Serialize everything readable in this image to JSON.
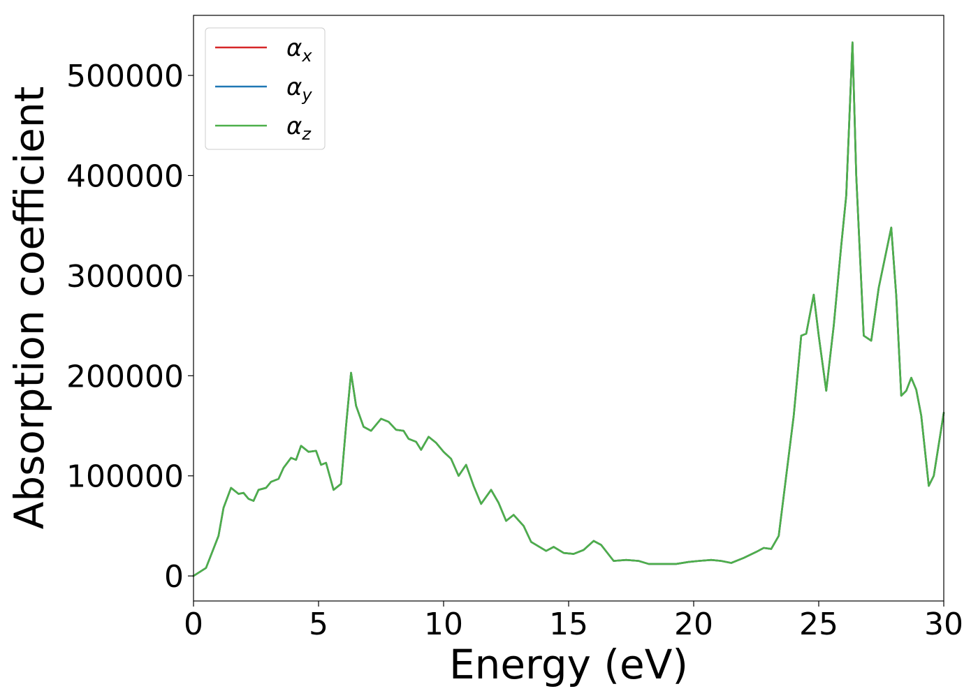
{
  "chart_data": {
    "type": "line",
    "xlabel": "Energy (eV)",
    "ylabel": "Absorption coefficient",
    "xlim": [
      0,
      30
    ],
    "ylim": [
      -25000,
      560000
    ],
    "x_ticks": [
      "0",
      "5",
      "10",
      "15",
      "20",
      "25",
      "30"
    ],
    "y_ticks": [
      "0",
      "100000",
      "200000",
      "300000",
      "400000",
      "500000"
    ],
    "grid": false,
    "legend_position": "top-left",
    "series": [
      {
        "name": "α",
        "subscript": "x",
        "color": "#d62728",
        "points": [
          [
            0,
            0
          ],
          [
            0.5,
            8000
          ],
          [
            1.0,
            40000
          ],
          [
            1.2,
            68000
          ],
          [
            1.5,
            88000
          ],
          [
            1.8,
            82000
          ],
          [
            2.0,
            83000
          ],
          [
            2.2,
            77000
          ],
          [
            2.4,
            75000
          ],
          [
            2.6,
            86000
          ],
          [
            2.9,
            88000
          ],
          [
            3.1,
            94000
          ],
          [
            3.4,
            97000
          ],
          [
            3.6,
            108000
          ],
          [
            3.9,
            118000
          ],
          [
            4.1,
            116000
          ],
          [
            4.3,
            130000
          ],
          [
            4.6,
            124000
          ],
          [
            4.9,
            125000
          ],
          [
            5.1,
            111000
          ],
          [
            5.3,
            113000
          ],
          [
            5.6,
            86000
          ],
          [
            5.9,
            92000
          ],
          [
            6.1,
            150000
          ],
          [
            6.3,
            203000
          ],
          [
            6.5,
            170000
          ],
          [
            6.8,
            149000
          ],
          [
            7.1,
            145000
          ],
          [
            7.5,
            157000
          ],
          [
            7.8,
            154000
          ],
          [
            8.1,
            146000
          ],
          [
            8.4,
            145000
          ],
          [
            8.6,
            137000
          ],
          [
            8.9,
            134000
          ],
          [
            9.1,
            126000
          ],
          [
            9.4,
            139000
          ],
          [
            9.7,
            133000
          ],
          [
            10.0,
            124000
          ],
          [
            10.3,
            117000
          ],
          [
            10.6,
            100000
          ],
          [
            10.9,
            111000
          ],
          [
            11.2,
            90000
          ],
          [
            11.5,
            72000
          ],
          [
            11.9,
            86000
          ],
          [
            12.2,
            73000
          ],
          [
            12.5,
            55000
          ],
          [
            12.8,
            61000
          ],
          [
            13.2,
            50000
          ],
          [
            13.5,
            34000
          ],
          [
            14.1,
            25000
          ],
          [
            14.4,
            29000
          ],
          [
            14.8,
            23000
          ],
          [
            15.2,
            22000
          ],
          [
            15.6,
            26000
          ],
          [
            16.0,
            35000
          ],
          [
            16.3,
            31000
          ],
          [
            16.8,
            15000
          ],
          [
            17.3,
            16000
          ],
          [
            17.8,
            15000
          ],
          [
            18.2,
            12000
          ],
          [
            18.8,
            12000
          ],
          [
            19.3,
            12000
          ],
          [
            19.8,
            14000
          ],
          [
            20.2,
            15000
          ],
          [
            20.7,
            16000
          ],
          [
            21.1,
            15000
          ],
          [
            21.5,
            13000
          ],
          [
            22.0,
            18000
          ],
          [
            22.5,
            24000
          ],
          [
            22.8,
            28000
          ],
          [
            23.1,
            27000
          ],
          [
            23.4,
            40000
          ],
          [
            23.7,
            100000
          ],
          [
            24.0,
            160000
          ],
          [
            24.3,
            240000
          ],
          [
            24.5,
            242000
          ],
          [
            24.8,
            281000
          ],
          [
            25.0,
            240000
          ],
          [
            25.3,
            185000
          ],
          [
            25.6,
            250000
          ],
          [
            25.9,
            330000
          ],
          [
            26.1,
            380000
          ],
          [
            26.35,
            533000
          ],
          [
            26.5,
            400000
          ],
          [
            26.8,
            240000
          ],
          [
            27.1,
            235000
          ],
          [
            27.4,
            288000
          ],
          [
            27.9,
            348000
          ],
          [
            28.1,
            280000
          ],
          [
            28.3,
            180000
          ],
          [
            28.5,
            185000
          ],
          [
            28.7,
            198000
          ],
          [
            28.9,
            186000
          ],
          [
            29.1,
            160000
          ],
          [
            29.4,
            90000
          ],
          [
            29.6,
            100000
          ],
          [
            30.0,
            163000
          ]
        ]
      },
      {
        "name": "α",
        "subscript": "y",
        "color": "#1f77b4",
        "points": [
          [
            0,
            0
          ],
          [
            0.5,
            8000
          ],
          [
            1.0,
            40000
          ],
          [
            1.2,
            68000
          ],
          [
            1.5,
            88000
          ],
          [
            1.8,
            82000
          ],
          [
            2.0,
            83000
          ],
          [
            2.2,
            77000
          ],
          [
            2.4,
            75000
          ],
          [
            2.6,
            86000
          ],
          [
            2.9,
            88000
          ],
          [
            3.1,
            94000
          ],
          [
            3.4,
            97000
          ],
          [
            3.6,
            108000
          ],
          [
            3.9,
            118000
          ],
          [
            4.1,
            116000
          ],
          [
            4.3,
            130000
          ],
          [
            4.6,
            124000
          ],
          [
            4.9,
            125000
          ],
          [
            5.1,
            111000
          ],
          [
            5.3,
            113000
          ],
          [
            5.6,
            86000
          ],
          [
            5.9,
            92000
          ],
          [
            6.1,
            150000
          ],
          [
            6.3,
            203000
          ],
          [
            6.5,
            170000
          ],
          [
            6.8,
            149000
          ],
          [
            7.1,
            145000
          ],
          [
            7.5,
            157000
          ],
          [
            7.8,
            154000
          ],
          [
            8.1,
            146000
          ],
          [
            8.4,
            145000
          ],
          [
            8.6,
            137000
          ],
          [
            8.9,
            134000
          ],
          [
            9.1,
            126000
          ],
          [
            9.4,
            139000
          ],
          [
            9.7,
            133000
          ],
          [
            10.0,
            124000
          ],
          [
            10.3,
            117000
          ],
          [
            10.6,
            100000
          ],
          [
            10.9,
            111000
          ],
          [
            11.2,
            90000
          ],
          [
            11.5,
            72000
          ],
          [
            11.9,
            86000
          ],
          [
            12.2,
            73000
          ],
          [
            12.5,
            55000
          ],
          [
            12.8,
            61000
          ],
          [
            13.2,
            50000
          ],
          [
            13.5,
            34000
          ],
          [
            14.1,
            25000
          ],
          [
            14.4,
            29000
          ],
          [
            14.8,
            23000
          ],
          [
            15.2,
            22000
          ],
          [
            15.6,
            26000
          ],
          [
            16.0,
            35000
          ],
          [
            16.3,
            31000
          ],
          [
            16.8,
            15000
          ],
          [
            17.3,
            16000
          ],
          [
            17.8,
            15000
          ],
          [
            18.2,
            12000
          ],
          [
            18.8,
            12000
          ],
          [
            19.3,
            12000
          ],
          [
            19.8,
            14000
          ],
          [
            20.2,
            15000
          ],
          [
            20.7,
            16000
          ],
          [
            21.1,
            15000
          ],
          [
            21.5,
            13000
          ],
          [
            22.0,
            18000
          ],
          [
            22.5,
            24000
          ],
          [
            22.8,
            28000
          ],
          [
            23.1,
            27000
          ],
          [
            23.4,
            40000
          ],
          [
            23.7,
            100000
          ],
          [
            24.0,
            160000
          ],
          [
            24.3,
            240000
          ],
          [
            24.5,
            242000
          ],
          [
            24.8,
            281000
          ],
          [
            25.0,
            240000
          ],
          [
            25.3,
            185000
          ],
          [
            25.6,
            250000
          ],
          [
            25.9,
            330000
          ],
          [
            26.1,
            380000
          ],
          [
            26.35,
            533000
          ],
          [
            26.5,
            400000
          ],
          [
            26.8,
            240000
          ],
          [
            27.1,
            235000
          ],
          [
            27.4,
            288000
          ],
          [
            27.9,
            348000
          ],
          [
            28.1,
            280000
          ],
          [
            28.3,
            180000
          ],
          [
            28.5,
            185000
          ],
          [
            28.7,
            198000
          ],
          [
            28.9,
            186000
          ],
          [
            29.1,
            160000
          ],
          [
            29.4,
            90000
          ],
          [
            29.6,
            100000
          ],
          [
            30.0,
            163000
          ]
        ]
      },
      {
        "name": "α",
        "subscript": "z",
        "color": "#4daf4a",
        "points": [
          [
            0,
            0
          ],
          [
            0.5,
            8000
          ],
          [
            1.0,
            40000
          ],
          [
            1.2,
            68000
          ],
          [
            1.5,
            88000
          ],
          [
            1.8,
            82000
          ],
          [
            2.0,
            83000
          ],
          [
            2.2,
            77000
          ],
          [
            2.4,
            75000
          ],
          [
            2.6,
            86000
          ],
          [
            2.9,
            88000
          ],
          [
            3.1,
            94000
          ],
          [
            3.4,
            97000
          ],
          [
            3.6,
            108000
          ],
          [
            3.9,
            118000
          ],
          [
            4.1,
            116000
          ],
          [
            4.3,
            130000
          ],
          [
            4.6,
            124000
          ],
          [
            4.9,
            125000
          ],
          [
            5.1,
            111000
          ],
          [
            5.3,
            113000
          ],
          [
            5.6,
            86000
          ],
          [
            5.9,
            92000
          ],
          [
            6.1,
            150000
          ],
          [
            6.3,
            203000
          ],
          [
            6.5,
            170000
          ],
          [
            6.8,
            149000
          ],
          [
            7.1,
            145000
          ],
          [
            7.5,
            157000
          ],
          [
            7.8,
            154000
          ],
          [
            8.1,
            146000
          ],
          [
            8.4,
            145000
          ],
          [
            8.6,
            137000
          ],
          [
            8.9,
            134000
          ],
          [
            9.1,
            126000
          ],
          [
            9.4,
            139000
          ],
          [
            9.7,
            133000
          ],
          [
            10.0,
            124000
          ],
          [
            10.3,
            117000
          ],
          [
            10.6,
            100000
          ],
          [
            10.9,
            111000
          ],
          [
            11.2,
            90000
          ],
          [
            11.5,
            72000
          ],
          [
            11.9,
            86000
          ],
          [
            12.2,
            73000
          ],
          [
            12.5,
            55000
          ],
          [
            12.8,
            61000
          ],
          [
            13.2,
            50000
          ],
          [
            13.5,
            34000
          ],
          [
            14.1,
            25000
          ],
          [
            14.4,
            29000
          ],
          [
            14.8,
            23000
          ],
          [
            15.2,
            22000
          ],
          [
            15.6,
            26000
          ],
          [
            16.0,
            35000
          ],
          [
            16.3,
            31000
          ],
          [
            16.8,
            15000
          ],
          [
            17.3,
            16000
          ],
          [
            17.8,
            15000
          ],
          [
            18.2,
            12000
          ],
          [
            18.8,
            12000
          ],
          [
            19.3,
            12000
          ],
          [
            19.8,
            14000
          ],
          [
            20.2,
            15000
          ],
          [
            20.7,
            16000
          ],
          [
            21.1,
            15000
          ],
          [
            21.5,
            13000
          ],
          [
            22.0,
            18000
          ],
          [
            22.5,
            24000
          ],
          [
            22.8,
            28000
          ],
          [
            23.1,
            27000
          ],
          [
            23.4,
            40000
          ],
          [
            23.7,
            100000
          ],
          [
            24.0,
            160000
          ],
          [
            24.3,
            240000
          ],
          [
            24.5,
            242000
          ],
          [
            24.8,
            281000
          ],
          [
            25.0,
            240000
          ],
          [
            25.3,
            185000
          ],
          [
            25.6,
            250000
          ],
          [
            25.9,
            330000
          ],
          [
            26.1,
            380000
          ],
          [
            26.35,
            533000
          ],
          [
            26.5,
            400000
          ],
          [
            26.8,
            240000
          ],
          [
            27.1,
            235000
          ],
          [
            27.4,
            288000
          ],
          [
            27.9,
            348000
          ],
          [
            28.1,
            280000
          ],
          [
            28.3,
            180000
          ],
          [
            28.5,
            185000
          ],
          [
            28.7,
            198000
          ],
          [
            28.9,
            186000
          ],
          [
            29.1,
            160000
          ],
          [
            29.4,
            90000
          ],
          [
            29.6,
            100000
          ],
          [
            30.0,
            163000
          ]
        ]
      }
    ]
  }
}
